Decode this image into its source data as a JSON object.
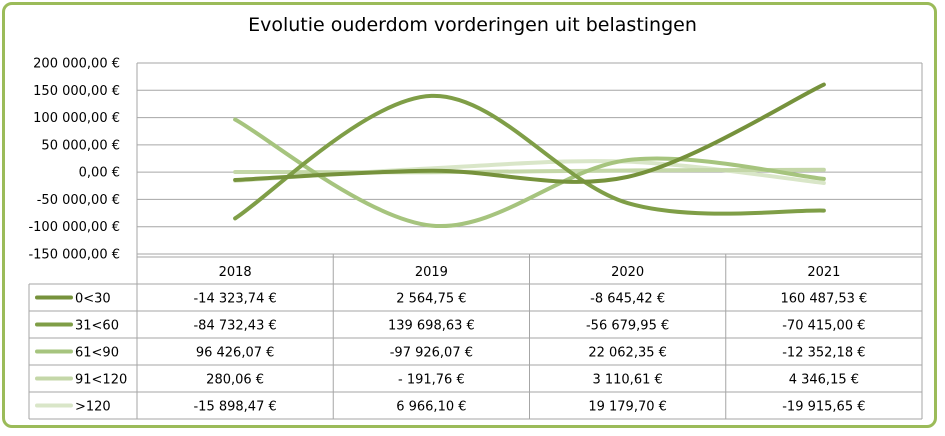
{
  "chart_data": {
    "type": "line",
    "title": "Evolutie ouderdom vorderingen uit belastingen",
    "categories": [
      "2018",
      "2019",
      "2020",
      "2021"
    ],
    "ylim": [
      -150000,
      200000
    ],
    "y_ticks": [
      "200 000,00 €",
      "150 000,00 €",
      "100 000,00 €",
      "50 000,00 €",
      "0,00 €",
      "-50 000,00 €",
      "-100 000,00 €",
      "-150 000,00 €"
    ],
    "grid": true,
    "legend": "data table",
    "series": [
      {
        "name": "0<30",
        "color": "#76923c",
        "values": [
          -14323.74,
          2564.75,
          -8645.42,
          160487.53
        ],
        "labels": [
          "-14 323,74 €",
          "2 564,75 €",
          "-8 645,42 €",
          "160 487,53 €"
        ]
      },
      {
        "name": "31<60",
        "color": "#7f9e47",
        "values": [
          -84732.43,
          139698.63,
          -56679.95,
          -70415.0
        ],
        "labels": [
          "-84 732,43 €",
          "139 698,63 €",
          "-56 679,95 €",
          "-70 415,00 €"
        ]
      },
      {
        "name": "61<90",
        "color": "#a6c47e",
        "values": [
          96426.07,
          -97926.07,
          22062.35,
          -12352.18
        ],
        "labels": [
          "96 426,07 €",
          "-97 926,07 €",
          "22 062,35 €",
          "-12 352,18 €"
        ]
      },
      {
        "name": "91<120",
        "color": "#c4d7a8",
        "values": [
          280.06,
          -191.76,
          3110.61,
          4346.15
        ],
        "labels": [
          "280,06 €",
          "- 191,76 €",
          "3 110,61 €",
          "4 346,15 €"
        ]
      },
      {
        "name": ">120",
        "color": "#d9e6c8",
        "values": [
          -15898.47,
          6966.1,
          19179.7,
          -19915.65
        ],
        "labels": [
          "-15 898,47 €",
          "6 966,10 €",
          "19 179,70 €",
          "-19 915,65 €"
        ]
      }
    ]
  }
}
